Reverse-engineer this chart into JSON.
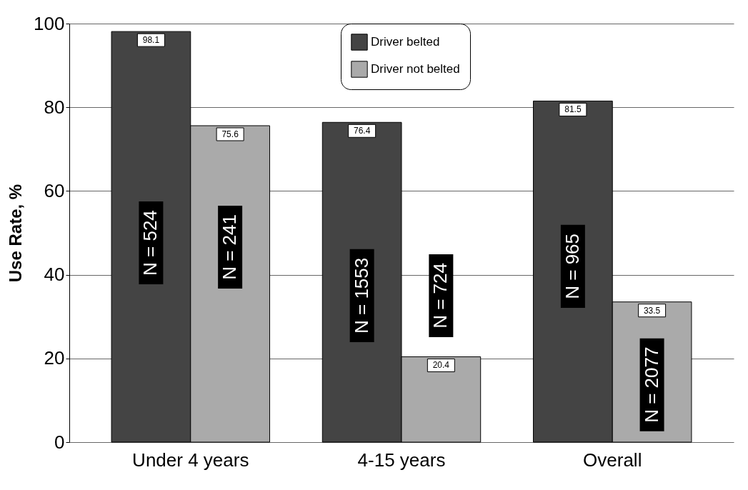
{
  "chart_data": {
    "type": "bar",
    "ylabel": "Use Rate, %",
    "categories": [
      "Under 4 years",
      "4-15 years",
      "Overall"
    ],
    "series": [
      {
        "name": "Driver belted",
        "color": "#444444",
        "values": [
          98.1,
          76.4,
          81.5
        ]
      },
      {
        "name": "Driver not belted",
        "color": "#aaaaaa",
        "values": [
          75.6,
          20.4,
          33.5
        ]
      }
    ],
    "ylim": [
      0,
      100
    ],
    "yticks": [
      0,
      20,
      40,
      60,
      80,
      100
    ],
    "grid": "y",
    "legend": "top",
    "data_labels": true,
    "annotations": [
      {
        "text": "N = 524",
        "x": "Under 4 years",
        "y": 47.6
      },
      {
        "text": "N = 241",
        "x": "Under 4 years",
        "y": 46.6
      },
      {
        "text": "N = 1553",
        "x": "4-15 years",
        "y": 35
      },
      {
        "text": "N = 724",
        "x": "4-15 years",
        "y": 35
      },
      {
        "text": "N = 965",
        "x": "Overall",
        "y": 42
      },
      {
        "text": "N = 2077",
        "x": "Overall",
        "y": 13.7
      }
    ]
  }
}
